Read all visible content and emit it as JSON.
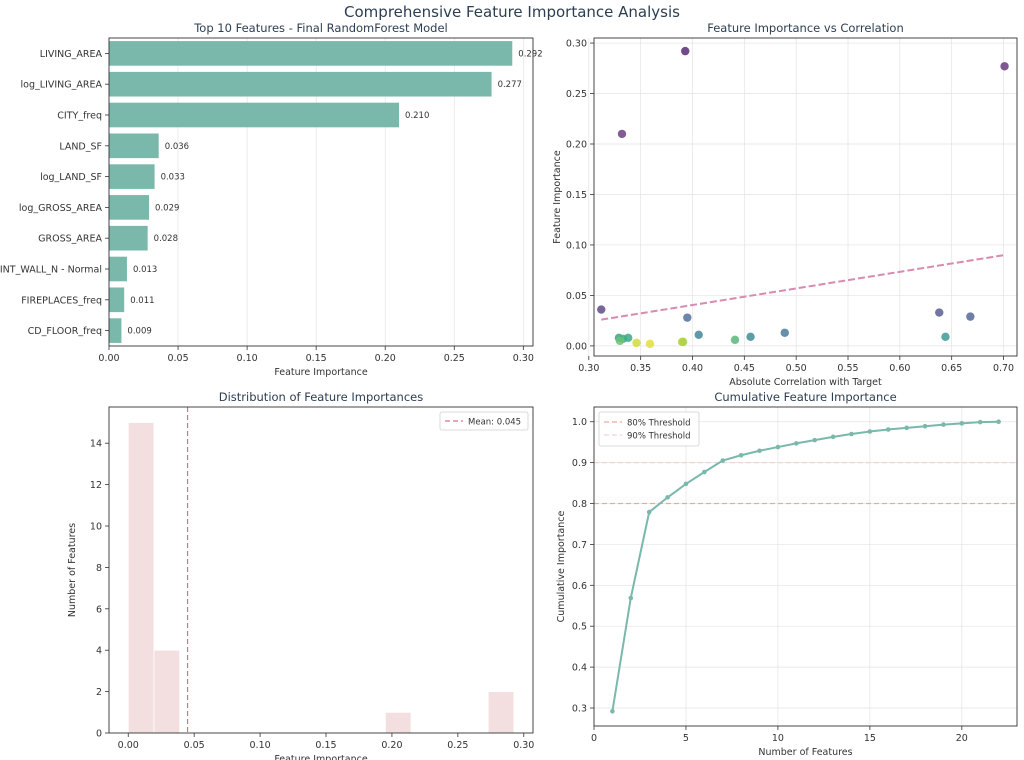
{
  "page_title": "Comprehensive Feature Importance Analysis",
  "chart_data": [
    {
      "type": "bar",
      "orientation": "horizontal",
      "title": "Top 10 Features - Final RandomForest Model",
      "xlabel": "Feature Importance",
      "ylabel": "",
      "categories": [
        "LIVING_AREA",
        "log_LIVING_AREA",
        "CITY_freq",
        "LAND_SF",
        "log_LAND_SF",
        "log_GROSS_AREA",
        "GROSS_AREA",
        "INT_WALL_N - Normal",
        "FIREPLACES_freq",
        "CD_FLOOR_freq"
      ],
      "values": [
        0.292,
        0.277,
        0.21,
        0.036,
        0.033,
        0.029,
        0.028,
        0.013,
        0.011,
        0.009
      ],
      "value_labels": [
        "0.292",
        "0.277",
        "0.210",
        "0.036",
        "0.033",
        "0.029",
        "0.028",
        "0.013",
        "0.011",
        "0.009"
      ],
      "xlim": [
        0,
        0.307
      ],
      "xticks": [
        0.0,
        0.05,
        0.1,
        0.15,
        0.2,
        0.25,
        0.3
      ],
      "xtick_labels": [
        "0.00",
        "0.05",
        "0.10",
        "0.15",
        "0.20",
        "0.25",
        "0.30"
      ],
      "color": "#7ab8ac",
      "grid": true
    },
    {
      "type": "scatter",
      "title": "Feature Importance vs Correlation",
      "xlabel": "Absolute Correlation with Target",
      "ylabel": "Feature Importance",
      "xlim": [
        0.305,
        0.713
      ],
      "ylim": [
        -0.01,
        0.305
      ],
      "xticks": [
        0.3,
        0.35,
        0.4,
        0.45,
        0.5,
        0.55,
        0.6,
        0.65,
        0.7
      ],
      "xtick_labels": [
        "0.30",
        "0.35",
        "0.40",
        "0.45",
        "0.50",
        "0.55",
        "0.60",
        "0.65",
        "0.70"
      ],
      "yticks": [
        0.0,
        0.05,
        0.1,
        0.15,
        0.2,
        0.25,
        0.3
      ],
      "ytick_labels": [
        "0.00",
        "0.05",
        "0.10",
        "0.15",
        "0.20",
        "0.25",
        "0.30"
      ],
      "points": [
        {
          "x": 0.393,
          "y": 0.292,
          "color": "#5b2a74"
        },
        {
          "x": 0.701,
          "y": 0.277,
          "color": "#6a3a80"
        },
        {
          "x": 0.332,
          "y": 0.21,
          "color": "#6e3f82"
        },
        {
          "x": 0.312,
          "y": 0.036,
          "color": "#5f4a8a"
        },
        {
          "x": 0.638,
          "y": 0.033,
          "color": "#5c5e92"
        },
        {
          "x": 0.668,
          "y": 0.029,
          "color": "#56699a"
        },
        {
          "x": 0.395,
          "y": 0.028,
          "color": "#55709c"
        },
        {
          "x": 0.489,
          "y": 0.013,
          "color": "#4a7c9a"
        },
        {
          "x": 0.406,
          "y": 0.011,
          "color": "#44879a"
        },
        {
          "x": 0.456,
          "y": 0.009,
          "color": "#3f8c96"
        },
        {
          "x": 0.644,
          "y": 0.009,
          "color": "#3c9a94"
        },
        {
          "x": 0.329,
          "y": 0.008,
          "color": "#37a48c"
        },
        {
          "x": 0.338,
          "y": 0.008,
          "color": "#3aa886"
        },
        {
          "x": 0.333,
          "y": 0.007,
          "color": "#40ad82"
        },
        {
          "x": 0.441,
          "y": 0.006,
          "color": "#58b97a"
        },
        {
          "x": 0.33,
          "y": 0.005,
          "color": "#6dc274"
        },
        {
          "x": 0.391,
          "y": 0.004,
          "color": "#a2d14f"
        },
        {
          "x": 0.39,
          "y": 0.004,
          "color": "#b3d43c"
        },
        {
          "x": 0.346,
          "y": 0.003,
          "color": "#cfdc37"
        },
        {
          "x": 0.359,
          "y": 0.002,
          "color": "#e3df3a"
        }
      ],
      "trendline": {
        "x": [
          0.312,
          0.701
        ],
        "y": [
          0.026,
          0.09
        ],
        "color": "#d98ab0",
        "style": "dashed"
      },
      "grid": true
    },
    {
      "type": "bar",
      "subtype": "histogram",
      "title": "Distribution of Feature Importances",
      "xlabel": "Feature Importance",
      "ylabel": "Number of Features",
      "bins": [
        {
          "start": 0.0,
          "end": 0.0195,
          "count": 15
        },
        {
          "start": 0.0195,
          "end": 0.039,
          "count": 4
        },
        {
          "start": 0.195,
          "end": 0.2145,
          "count": 1
        },
        {
          "start": 0.273,
          "end": 0.2925,
          "count": 2
        }
      ],
      "xlim": [
        -0.0146,
        0.307
      ],
      "ylim": [
        0,
        15.75
      ],
      "xticks": [
        0.0,
        0.05,
        0.1,
        0.15,
        0.2,
        0.25,
        0.3
      ],
      "xtick_labels": [
        "0.00",
        "0.05",
        "0.10",
        "0.15",
        "0.20",
        "0.25",
        "0.30"
      ],
      "yticks": [
        0,
        2,
        4,
        6,
        8,
        10,
        12,
        14
      ],
      "ytick_labels": [
        "0",
        "2",
        "4",
        "6",
        "8",
        "10",
        "12",
        "14"
      ],
      "mean_line": {
        "x": 0.045,
        "label": "Mean: 0.045",
        "color": "#d9708a"
      },
      "bar_color": "#f3dfe0",
      "legend_position": "top-right",
      "grid": false
    },
    {
      "type": "line",
      "title": "Cumulative Feature Importance",
      "xlabel": "Number of Features",
      "ylabel": "Cumulative Importance",
      "x": [
        1,
        2,
        3,
        4,
        5,
        6,
        7,
        8,
        9,
        10,
        11,
        12,
        13,
        14,
        15,
        16,
        17,
        18,
        19,
        20,
        21,
        22
      ],
      "y": [
        0.292,
        0.569,
        0.779,
        0.815,
        0.848,
        0.877,
        0.905,
        0.918,
        0.929,
        0.938,
        0.947,
        0.955,
        0.963,
        0.97,
        0.976,
        0.981,
        0.985,
        0.989,
        0.993,
        0.996,
        0.999,
        1.0
      ],
      "xlim": [
        0,
        23
      ],
      "ylim": [
        0.256,
        1.036
      ],
      "xticks": [
        0,
        5,
        10,
        15,
        20
      ],
      "xtick_labels": [
        "0",
        "5",
        "10",
        "15",
        "20"
      ],
      "yticks": [
        0.3,
        0.4,
        0.5,
        0.6,
        0.7,
        0.8,
        0.9,
        1.0
      ],
      "ytick_labels": [
        "0.3",
        "0.4",
        "0.5",
        "0.6",
        "0.7",
        "0.8",
        "0.9",
        "1.0"
      ],
      "line_color": "#7ab8ac",
      "thresholds": [
        {
          "y": 0.8,
          "label": "80% Threshold",
          "color": "#f2a69a"
        },
        {
          "y": 0.9,
          "label": "90% Threshold",
          "color": "#f5d3cf"
        }
      ],
      "legend_position": "top-left",
      "grid": true
    }
  ]
}
